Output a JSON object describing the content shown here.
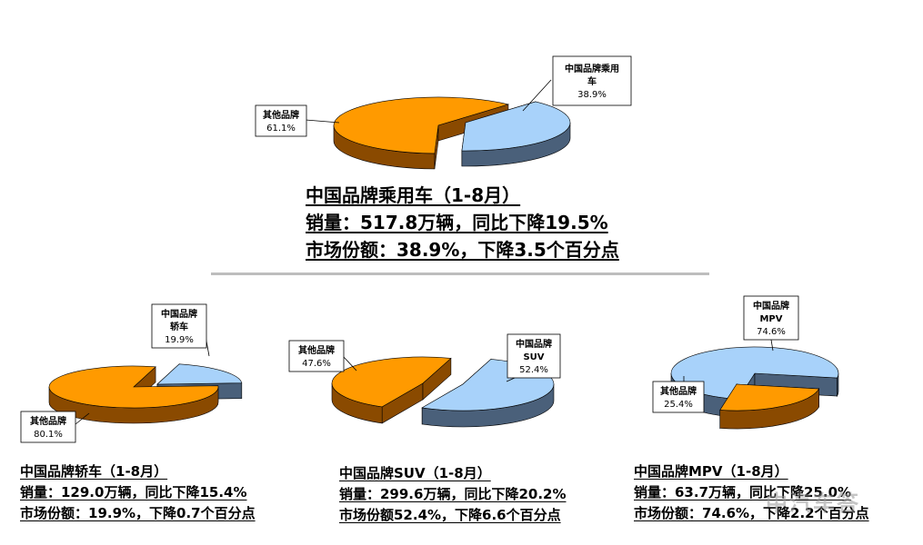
{
  "colors": {
    "china_brand_top": "#a8d2fa",
    "china_brand_side": "#4a607a",
    "other_top": "#ff9a00",
    "other_side": "#8a4a00",
    "label_border": "#000000"
  },
  "chart_data": [
    {
      "type": "pie",
      "id": "passenger",
      "series": [
        {
          "name": "中国品牌乘用车",
          "label": "中国品牌乘用车",
          "value": 38.9,
          "value_label": "38.9%"
        },
        {
          "name": "其他品牌",
          "label": "其他品牌",
          "value": 61.1,
          "value_label": "61.1%"
        }
      ],
      "caption": [
        "中国品牌乘用车（1-8月）",
        "销量：517.8万辆，同比下降19.5%",
        "市场份额：38.9%，下降3.5个百分点"
      ]
    },
    {
      "type": "pie",
      "id": "sedan",
      "series": [
        {
          "name": "中国品牌轿车",
          "label": "中国品牌轿车",
          "value": 19.9,
          "value_label": "19.9%"
        },
        {
          "name": "其他品牌",
          "label": "其他品牌",
          "value": 80.1,
          "value_label": "80.1%"
        }
      ],
      "caption": [
        "中国品牌轿车（1-8月）",
        "销量：129.0万辆，同比下降15.4%",
        "市场份额：19.9%，下降0.7个百分点"
      ]
    },
    {
      "type": "pie",
      "id": "suv",
      "series": [
        {
          "name": "中国品牌SUV",
          "label": "中国品牌SUV",
          "value": 52.4,
          "value_label": "52.4%"
        },
        {
          "name": "其他品牌",
          "label": "其他品牌",
          "value": 47.6,
          "value_label": "47.6%"
        }
      ],
      "caption": [
        "中国品牌SUV（1-8月）",
        "销量：299.6万辆，同比下降20.2%",
        "市场份额52.4%，下降6.6个百分点"
      ]
    },
    {
      "type": "pie",
      "id": "mpv",
      "series": [
        {
          "name": "中国品牌MPV",
          "label": "中国品牌MPV",
          "value": 74.6,
          "value_label": "74.6%"
        },
        {
          "name": "其他品牌",
          "label": "其他品牌",
          "value": 25.4,
          "value_label": "25.4%"
        }
      ],
      "caption": [
        "中国品牌MPV（1-8月）",
        "销量：63.7万辆，同比下降25.0%",
        "市场份额：74.6%，下降2.2个百分点"
      ]
    }
  ],
  "watermark": "中汽车答"
}
